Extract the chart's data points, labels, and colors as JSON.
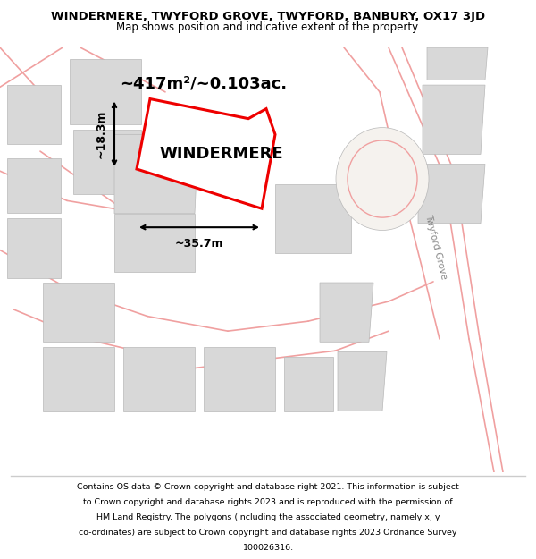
{
  "title_line1": "WINDERMERE, TWYFORD GROVE, TWYFORD, BANBURY, OX17 3JD",
  "title_line2": "Map shows position and indicative extent of the property.",
  "footer_lines": [
    "Contains OS data © Crown copyright and database right 2021. This information is subject",
    "to Crown copyright and database rights 2023 and is reproduced with the permission of",
    "HM Land Registry. The polygons (including the associated geometry, namely x, y",
    "co-ordinates) are subject to Crown copyright and database rights 2023 Ordnance Survey",
    "100026316."
  ],
  "property_name": "WINDERMERE",
  "area_text": "~417m²/~0.103ac.",
  "dim_width": "~35.7m",
  "dim_height": "~18.3m",
  "bg_color": "#ffffff",
  "map_bg": "#f5f2ee",
  "road_color": "#f0a0a0",
  "building_color": "#d8d8d8",
  "building_edge_color": "#b8b8b8",
  "property_edge_color": "#ee0000",
  "road_label_color": "#888888",
  "twyford_grove_label": "Twyford Grove"
}
